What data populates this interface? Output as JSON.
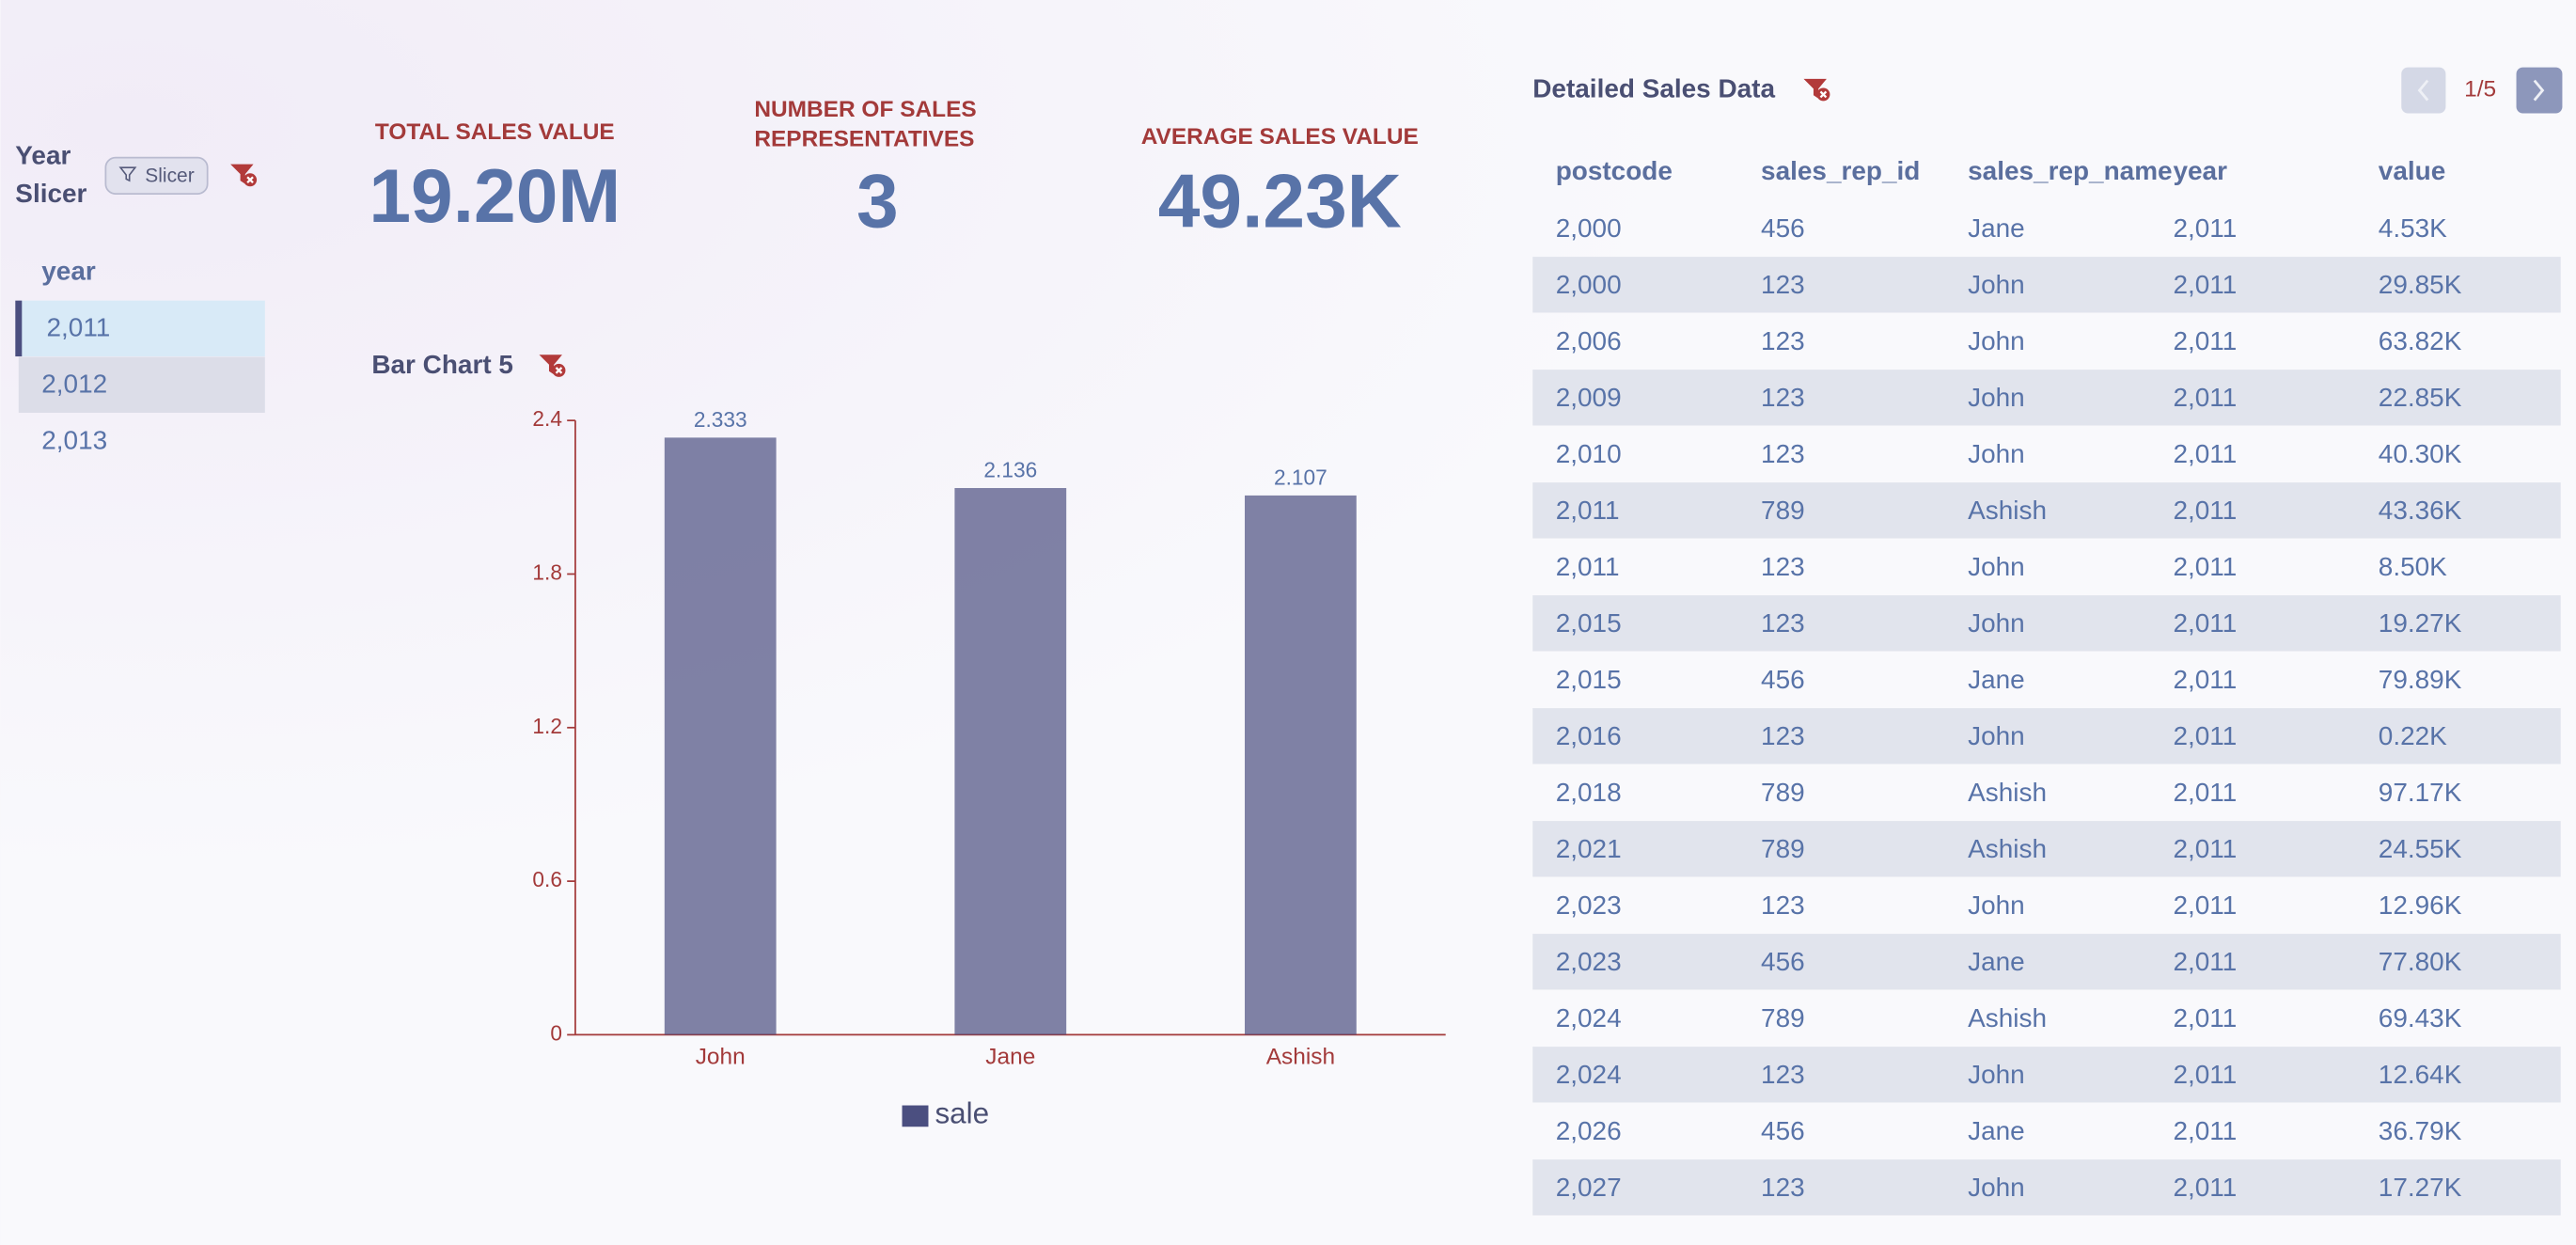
{
  "slicer": {
    "title": "Year Slicer",
    "badge": "Slicer",
    "header": "year",
    "items": [
      "2,011",
      "2,012",
      "2,013"
    ]
  },
  "kpis": [
    {
      "label": "TOTAL SALES VALUE",
      "value": "19.20M"
    },
    {
      "label": "NUMBER OF SALES REPRESENTATIVES",
      "value": "3"
    },
    {
      "label": "AVERAGE SALES VALUE",
      "value": "49.23K"
    }
  ],
  "chart_data": {
    "type": "bar",
    "title": "Bar Chart 5",
    "categories": [
      "John",
      "Jane",
      "Ashish"
    ],
    "series": [
      {
        "name": "sale",
        "color": "#4b4f80",
        "values": [
          2.333,
          2.136,
          2.107
        ]
      }
    ],
    "ylim": [
      0,
      2.4
    ],
    "yticks": [
      0,
      0.6,
      1.2,
      1.8,
      2.4
    ],
    "grid": false,
    "legend": "bottom"
  },
  "table": {
    "title": "Detailed Sales Data",
    "page": "1/5",
    "columns": [
      "postcode",
      "sales_rep_id",
      "sales_rep_name",
      "year",
      "value"
    ],
    "rows": [
      [
        "2,000",
        "456",
        "Jane",
        "2,011",
        "4.53K"
      ],
      [
        "2,000",
        "123",
        "John",
        "2,011",
        "29.85K"
      ],
      [
        "2,006",
        "123",
        "John",
        "2,011",
        "63.82K"
      ],
      [
        "2,009",
        "123",
        "John",
        "2,011",
        "22.85K"
      ],
      [
        "2,010",
        "123",
        "John",
        "2,011",
        "40.30K"
      ],
      [
        "2,011",
        "789",
        "Ashish",
        "2,011",
        "43.36K"
      ],
      [
        "2,011",
        "123",
        "John",
        "2,011",
        "8.50K"
      ],
      [
        "2,015",
        "123",
        "John",
        "2,011",
        "19.27K"
      ],
      [
        "2,015",
        "456",
        "Jane",
        "2,011",
        "79.89K"
      ],
      [
        "2,016",
        "123",
        "John",
        "2,011",
        "0.22K"
      ],
      [
        "2,018",
        "789",
        "Ashish",
        "2,011",
        "97.17K"
      ],
      [
        "2,021",
        "789",
        "Ashish",
        "2,011",
        "24.55K"
      ],
      [
        "2,023",
        "123",
        "John",
        "2,011",
        "12.96K"
      ],
      [
        "2,023",
        "456",
        "Jane",
        "2,011",
        "77.80K"
      ],
      [
        "2,024",
        "789",
        "Ashish",
        "2,011",
        "69.43K"
      ],
      [
        "2,024",
        "123",
        "John",
        "2,011",
        "12.64K"
      ],
      [
        "2,026",
        "456",
        "Jane",
        "2,011",
        "36.79K"
      ],
      [
        "2,027",
        "123",
        "John",
        "2,011",
        "17.27K"
      ]
    ]
  }
}
